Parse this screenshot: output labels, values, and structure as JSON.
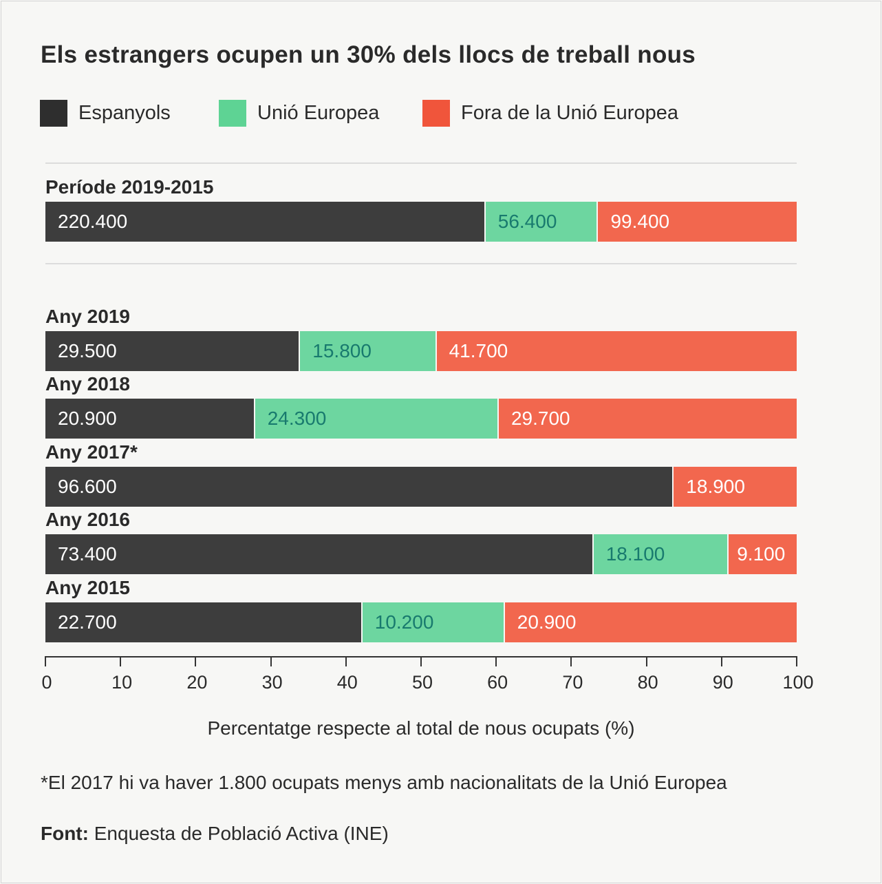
{
  "chart_data": {
    "type": "bar",
    "orientation": "horizontal",
    "stacked": "percent",
    "title": "Els estrangers ocupen un 30% dels llocs de treball nous",
    "xlabel": "Percentatge respecte al total de nous ocupats (%)",
    "xlim": [
      0,
      100
    ],
    "xticks": [
      0,
      10,
      20,
      30,
      40,
      50,
      60,
      70,
      80,
      90,
      100
    ],
    "legend_position": "top-left",
    "series": [
      {
        "name": "Espanyols",
        "color": "#3d3d3d",
        "legend_color": "#2e2e2e",
        "label_color": "#ffffff"
      },
      {
        "name": "Unió Europea",
        "color": "#6dd6a0",
        "legend_color": "#5ed394",
        "label_color": "#187a6e"
      },
      {
        "name": "Fora de la Unió Europea",
        "color": "#f2674e",
        "legend_color": "#f0553b",
        "label_color": "#ffffff"
      }
    ],
    "rows": [
      {
        "label": "Període 2019-2015",
        "values": [
          220400,
          56400,
          99400
        ],
        "labels": [
          "220.400",
          "56.400",
          "99.400"
        ]
      },
      {
        "label": "Any 2019",
        "values": [
          29500,
          15800,
          41700
        ],
        "labels": [
          "29.500",
          "15.800",
          "41.700"
        ]
      },
      {
        "label": "Any 2018",
        "values": [
          20900,
          24300,
          29700
        ],
        "labels": [
          "20.900",
          "24.300",
          "29.700"
        ]
      },
      {
        "label": "Any 2017*",
        "values": [
          96600,
          0,
          18900
        ],
        "labels": [
          "96.600",
          "",
          "18.900"
        ]
      },
      {
        "label": "Any 2016",
        "values": [
          73400,
          18100,
          9100
        ],
        "labels": [
          "73.400",
          "18.100",
          "9.100"
        ]
      },
      {
        "label": "Any 2015",
        "values": [
          22700,
          10200,
          20900
        ],
        "labels": [
          "22.700",
          "10.200",
          "20.900"
        ]
      }
    ],
    "note": "*El 2017 hi va haver 1.800 ocupats menys amb nacionalitats de la Unió Europea",
    "source_label": "Font:",
    "source_text": "Enquesta de Població Activa (INE)"
  }
}
